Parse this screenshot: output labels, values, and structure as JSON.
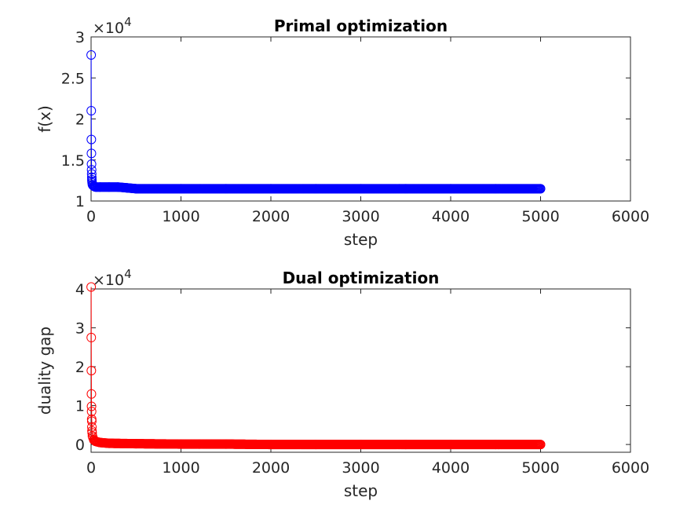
{
  "chart_data": [
    {
      "type": "line",
      "title": "Primal optimization",
      "xlabel": "step",
      "ylabel": "f(x)",
      "y_multiplier": "×10",
      "y_multiplier_exp": "4",
      "xlim": [
        0,
        6000
      ],
      "ylim": [
        1,
        3
      ],
      "x_ticks": [
        "0",
        "1000",
        "2000",
        "3000",
        "4000",
        "5000",
        "6000"
      ],
      "y_ticks": [
        "1",
        "1.5",
        "2",
        "2.5",
        "3"
      ],
      "grid": false,
      "marker": "circle",
      "color": "#0000ff",
      "series": [
        {
          "x": [
            1,
            2,
            3,
            4,
            5,
            6,
            7,
            8,
            9,
            10,
            12,
            15,
            20,
            30,
            50,
            100,
            200,
            300,
            400,
            500,
            1000,
            1500,
            2000,
            2500,
            3000,
            3500,
            4000,
            4500,
            5000
          ],
          "y": [
            2.78,
            2.1,
            1.75,
            1.58,
            1.45,
            1.38,
            1.33,
            1.29,
            1.26,
            1.24,
            1.22,
            1.2,
            1.19,
            1.18,
            1.17,
            1.17,
            1.17,
            1.17,
            1.16,
            1.15,
            1.15,
            1.15,
            1.15,
            1.15,
            1.15,
            1.15,
            1.15,
            1.15,
            1.15
          ]
        }
      ]
    },
    {
      "type": "line",
      "title": "Dual optimization",
      "xlabel": "step",
      "ylabel": "duality gap",
      "y_multiplier": "×10",
      "y_multiplier_exp": "4",
      "xlim": [
        0,
        6000
      ],
      "ylim": [
        -0.2,
        4
      ],
      "x_ticks": [
        "0",
        "1000",
        "2000",
        "3000",
        "4000",
        "5000",
        "6000"
      ],
      "y_ticks": [
        "0",
        "1",
        "2",
        "3",
        "4"
      ],
      "grid": false,
      "marker": "circle",
      "color": "#ff0000",
      "series": [
        {
          "x": [
            1,
            2,
            3,
            4,
            5,
            6,
            7,
            8,
            9,
            10,
            12,
            15,
            20,
            30,
            50,
            100,
            200,
            500,
            1000,
            1500,
            2000,
            2500,
            3000,
            3500,
            4000,
            4500,
            5000
          ],
          "y": [
            4.05,
            2.75,
            1.9,
            1.3,
            0.98,
            0.85,
            0.65,
            0.6,
            0.45,
            0.35,
            0.3,
            0.22,
            0.18,
            0.12,
            0.08,
            0.05,
            0.03,
            0.02,
            0.01,
            0.01,
            0.0,
            0.0,
            0.0,
            0.0,
            0.0,
            0.0,
            0.0
          ]
        }
      ]
    }
  ]
}
